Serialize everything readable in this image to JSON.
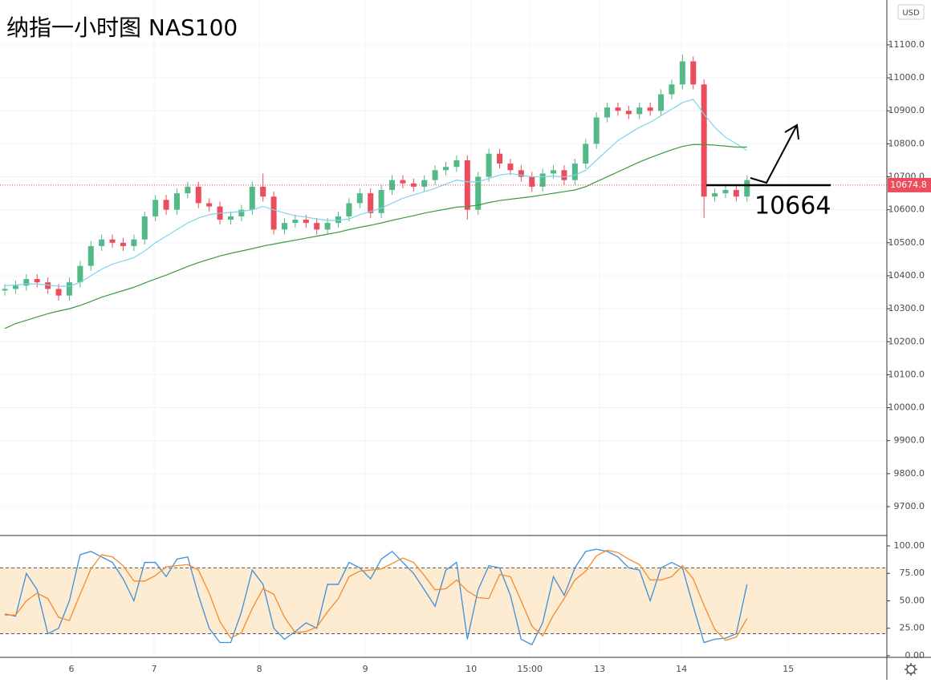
{
  "chart_data": [
    {
      "type": "candlestick",
      "title": "纳指一小时图 NAS100",
      "currency": "USD",
      "annotation": "10664",
      "last_price": 10674.8,
      "xlim": [
        -0.45,
        82
      ],
      "ylim": [
        9612.5,
        11236
      ],
      "xticks": [
        {
          "value": 6.19,
          "label": "6"
        },
        {
          "value": 13.88,
          "label": "7"
        },
        {
          "value": 23.66,
          "label": "8"
        },
        {
          "value": 33.51,
          "label": "9"
        },
        {
          "value": 43.36,
          "label": "10"
        },
        {
          "value": 48.81,
          "label": "15:00"
        },
        {
          "value": 55.3,
          "label": "13"
        },
        {
          "value": 62.91,
          "label": "14"
        },
        {
          "value": 72.84,
          "label": "15"
        }
      ],
      "yticks": [
        {
          "value": 9700,
          "label": "9700.0"
        },
        {
          "value": 9800,
          "label": "9800.0"
        },
        {
          "value": 9900,
          "label": "9900.0"
        },
        {
          "value": 10000,
          "label": "10000.0"
        },
        {
          "value": 10100,
          "label": "10100.0"
        },
        {
          "value": 10200,
          "label": "10200.0"
        },
        {
          "value": 10300,
          "label": "10300.0"
        },
        {
          "value": 10400,
          "label": "10400.0"
        },
        {
          "value": 10500,
          "label": "10500.0"
        },
        {
          "value": 10600,
          "label": "10600.0"
        },
        {
          "value": 10700,
          "label": "10700.0"
        },
        {
          "value": 10800,
          "label": "10800.0"
        },
        {
          "value": 10900,
          "label": "10900.0"
        },
        {
          "value": 11000,
          "label": "11000.0"
        },
        {
          "value": 11100,
          "label": "11100.0"
        }
      ],
      "up_color": "#53b987",
      "down_color": "#eb4d5c",
      "grid": true,
      "open": [
        10355,
        10360,
        10370,
        10390,
        10380,
        10360,
        10340,
        10380,
        10430,
        10490,
        10510,
        10500,
        10490,
        10510,
        10580,
        10630,
        10600,
        10650,
        10670,
        10620,
        10610,
        10570,
        10580,
        10600,
        10670,
        10640,
        10540,
        10560,
        10570,
        10560,
        10540,
        10560,
        10580,
        10620,
        10650,
        10590,
        10660,
        10690,
        10680,
        10670,
        10690,
        10720,
        10730,
        10750,
        10600,
        10700,
        10770,
        10740,
        10720,
        10700,
        10670,
        10710,
        10720,
        10690,
        10740,
        10800,
        10880,
        10910,
        10900,
        10890,
        10910,
        10900,
        10950,
        10980,
        11050,
        10980,
        10640,
        10650,
        10660,
        10640
      ],
      "high": [
        10375,
        10385,
        10405,
        10405,
        10395,
        10375,
        10395,
        10445,
        10505,
        10525,
        10525,
        10515,
        10525,
        10595,
        10645,
        10645,
        10665,
        10685,
        10685,
        10635,
        10625,
        10595,
        10615,
        10685,
        10710,
        10655,
        10575,
        10585,
        10585,
        10575,
        10575,
        10595,
        10635,
        10665,
        10665,
        10675,
        10705,
        10705,
        10695,
        10705,
        10735,
        10745,
        10765,
        10765,
        10715,
        10785,
        10785,
        10755,
        10735,
        10715,
        10725,
        10735,
        10735,
        10755,
        10815,
        10895,
        10925,
        10925,
        10915,
        10925,
        10925,
        10965,
        10995,
        11070,
        11065,
        10995,
        10665,
        10675,
        10675,
        10705
      ],
      "low": [
        10340,
        10345,
        10355,
        10365,
        10345,
        10325,
        10325,
        10365,
        10415,
        10475,
        10485,
        10475,
        10475,
        10495,
        10565,
        10585,
        10585,
        10635,
        10605,
        10595,
        10555,
        10555,
        10565,
        10585,
        10625,
        10525,
        10525,
        10545,
        10545,
        10525,
        10525,
        10545,
        10565,
        10605,
        10575,
        10575,
        10645,
        10665,
        10655,
        10655,
        10675,
        10705,
        10715,
        10570,
        10585,
        10685,
        10725,
        10705,
        10685,
        10655,
        10655,
        10695,
        10675,
        10675,
        10725,
        10785,
        10865,
        10885,
        10875,
        10875,
        10885,
        10885,
        10935,
        10965,
        10965,
        10575,
        10625,
        10635,
        10625,
        10625
      ],
      "close": [
        10360,
        10370,
        10390,
        10380,
        10360,
        10340,
        10380,
        10430,
        10490,
        10510,
        10500,
        10490,
        10510,
        10580,
        10630,
        10600,
        10650,
        10670,
        10620,
        10610,
        10570,
        10580,
        10600,
        10670,
        10640,
        10540,
        10560,
        10570,
        10560,
        10540,
        10560,
        10580,
        10620,
        10650,
        10590,
        10660,
        10690,
        10680,
        10670,
        10690,
        10720,
        10730,
        10750,
        10600,
        10700,
        10770,
        10740,
        10720,
        10700,
        10670,
        10710,
        10720,
        10690,
        10740,
        10800,
        10880,
        10910,
        10900,
        10890,
        10910,
        10900,
        10950,
        10980,
        11050,
        10980,
        10640,
        10650,
        10660,
        10640,
        10690
      ],
      "series": [
        {
          "color": "#7fd3ea",
          "values": [
            10370,
            10372,
            10375,
            10375,
            10372,
            10368,
            10368,
            10380,
            10400,
            10420,
            10435,
            10445,
            10455,
            10475,
            10500,
            10520,
            10540,
            10560,
            10575,
            10585,
            10590,
            10592,
            10595,
            10600,
            10610,
            10600,
            10590,
            10582,
            10578,
            10572,
            10568,
            10568,
            10572,
            10585,
            10595,
            10605,
            10620,
            10635,
            10645,
            10655,
            10665,
            10678,
            10690,
            10685,
            10685,
            10695,
            10705,
            10710,
            10705,
            10700,
            10700,
            10702,
            10700,
            10705,
            10720,
            10750,
            10780,
            10810,
            10830,
            10850,
            10865,
            10885,
            10905,
            10925,
            10935,
            10890,
            10850,
            10820,
            10800,
            10780
          ]
        },
        {
          "color": "#3d9a3d",
          "values": [
            10240,
            10255,
            10265,
            10275,
            10285,
            10293,
            10300,
            10310,
            10322,
            10335,
            10345,
            10355,
            10365,
            10378,
            10390,
            10402,
            10415,
            10428,
            10440,
            10450,
            10460,
            10468,
            10475,
            10482,
            10490,
            10496,
            10502,
            10508,
            10514,
            10520,
            10526,
            10532,
            10540,
            10547,
            10553,
            10560,
            10568,
            10575,
            10582,
            10590,
            10596,
            10602,
            10608,
            10610,
            10614,
            10622,
            10628,
            10632,
            10636,
            10640,
            10645,
            10650,
            10655,
            10660,
            10670,
            10685,
            10700,
            10715,
            10730,
            10745,
            10758,
            10770,
            10782,
            10792,
            10798,
            10798,
            10796,
            10793,
            10790,
            10790
          ]
        }
      ]
    },
    {
      "type": "line",
      "xlim": [
        -0.45,
        82
      ],
      "ylim": [
        -1.5,
        109.5
      ],
      "band": [
        20,
        80
      ],
      "band_color": "#fde6c7",
      "yticks": [
        {
          "value": 0,
          "label": "0.00"
        },
        {
          "value": 25,
          "label": "25.00"
        },
        {
          "value": 50,
          "label": "50.00"
        },
        {
          "value": 75,
          "label": "75.00"
        },
        {
          "value": 100,
          "label": "100.00"
        }
      ],
      "series": [
        {
          "color": "#3d8fd9",
          "values": [
            38,
            36,
            75,
            60,
            20,
            25,
            50,
            92,
            95,
            90,
            85,
            70,
            50,
            85,
            85,
            72,
            88,
            90,
            55,
            25,
            12,
            12,
            40,
            78,
            65,
            25,
            15,
            22,
            30,
            25,
            65,
            65,
            85,
            80,
            70,
            88,
            95,
            85,
            75,
            60,
            45,
            78,
            85,
            15,
            60,
            82,
            80,
            55,
            15,
            10,
            30,
            72,
            55,
            80,
            95,
            97,
            95,
            90,
            80,
            78,
            50,
            80,
            85,
            80,
            45,
            12,
            15,
            16,
            20,
            65
          ]
        },
        {
          "color": "#f68a2b",
          "values": [
            37,
            37,
            50,
            57,
            52,
            35,
            32,
            56,
            79,
            92,
            90,
            82,
            68,
            68,
            73,
            81,
            82,
            83,
            78,
            57,
            31,
            16,
            21,
            43,
            61,
            56,
            35,
            21,
            22,
            26,
            40,
            52,
            72,
            77,
            78,
            79,
            84,
            89,
            85,
            73,
            60,
            61,
            69,
            59,
            53,
            52,
            74,
            72,
            50,
            27,
            18,
            37,
            52,
            69,
            77,
            91,
            96,
            94,
            88,
            83,
            69,
            69,
            72,
            82,
            70,
            46,
            24,
            14,
            17,
            34
          ]
        }
      ]
    }
  ]
}
